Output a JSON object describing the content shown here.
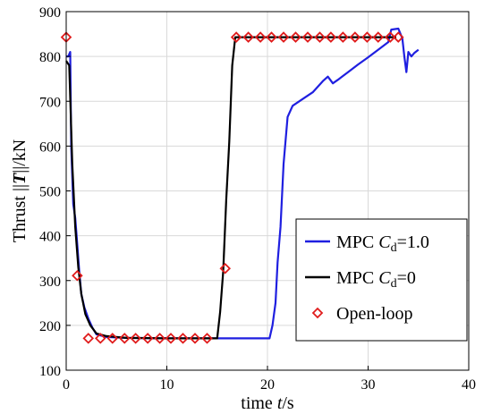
{
  "chart_data": {
    "type": "line",
    "title": "",
    "xlabel": {
      "prefix": "time ",
      "italic": "t",
      "suffix": "/s"
    },
    "ylabel": {
      "prefix": "Thrust ||",
      "italic": "T",
      "suffix": "||/kN"
    },
    "xlim": [
      0,
      40
    ],
    "ylim": [
      100,
      900
    ],
    "xticks": [
      0,
      10,
      20,
      30,
      40
    ],
    "yticks": [
      100,
      200,
      300,
      400,
      500,
      600,
      700,
      800,
      900
    ],
    "grid": true,
    "legend_position": "center-right",
    "series": [
      {
        "name": {
          "prefix": "MPC ",
          "italic": "C",
          "sub": "d",
          "suffix": "=1.0"
        },
        "color": "#1f1fe0",
        "style": "line",
        "points": [
          [
            0.0,
            800
          ],
          [
            0.2,
            800
          ],
          [
            0.4,
            810
          ],
          [
            0.5,
            600
          ],
          [
            0.7,
            470
          ],
          [
            0.9,
            440
          ],
          [
            1.1,
            380
          ],
          [
            1.3,
            320
          ],
          [
            1.5,
            270
          ],
          [
            1.8,
            240
          ],
          [
            2.2,
            215
          ],
          [
            2.6,
            195
          ],
          [
            3.0,
            180
          ],
          [
            4.0,
            174
          ],
          [
            6.0,
            172
          ],
          [
            10.0,
            171
          ],
          [
            14.0,
            171
          ],
          [
            20.2,
            171
          ],
          [
            20.5,
            200
          ],
          [
            20.8,
            250
          ],
          [
            21.0,
            340
          ],
          [
            21.3,
            420
          ],
          [
            21.6,
            560
          ],
          [
            22.0,
            665
          ],
          [
            22.5,
            690
          ],
          [
            23.5,
            705
          ],
          [
            24.5,
            720
          ],
          [
            25.5,
            745
          ],
          [
            26.0,
            755
          ],
          [
            26.5,
            740
          ],
          [
            27.0,
            748
          ],
          [
            28.0,
            765
          ],
          [
            29.0,
            782
          ],
          [
            30.0,
            798
          ],
          [
            31.0,
            815
          ],
          [
            32.0,
            832
          ],
          [
            32.3,
            860
          ],
          [
            33.0,
            862
          ],
          [
            33.4,
            840
          ],
          [
            33.6,
            800
          ],
          [
            33.8,
            765
          ],
          [
            34.0,
            810
          ],
          [
            34.3,
            800
          ],
          [
            34.6,
            808
          ],
          [
            35.0,
            815
          ]
        ]
      },
      {
        "name": {
          "prefix": "MPC ",
          "italic": "C",
          "sub": "d",
          "suffix": "=0"
        },
        "color": "#000000",
        "style": "line",
        "points": [
          [
            0.0,
            790
          ],
          [
            0.3,
            780
          ],
          [
            0.6,
            560
          ],
          [
            0.9,
            420
          ],
          [
            1.2,
            330
          ],
          [
            1.5,
            270
          ],
          [
            1.9,
            225
          ],
          [
            2.4,
            200
          ],
          [
            3.0,
            182
          ],
          [
            4.0,
            176
          ],
          [
            6.0,
            172
          ],
          [
            10.0,
            171
          ],
          [
            15.0,
            171
          ],
          [
            15.3,
            230
          ],
          [
            15.6,
            320
          ],
          [
            15.9,
            480
          ],
          [
            16.2,
            610
          ],
          [
            16.5,
            780
          ],
          [
            16.8,
            843
          ],
          [
            20.0,
            843
          ],
          [
            25.0,
            843
          ],
          [
            30.0,
            843
          ],
          [
            32.8,
            843
          ]
        ]
      },
      {
        "name": {
          "prefix": "Open-loop",
          "italic": "",
          "sub": "",
          "suffix": ""
        },
        "color": "#e01c1c",
        "style": "diamond-markers",
        "points": [
          [
            0.0,
            843
          ],
          [
            1.1,
            311
          ],
          [
            2.2,
            171
          ],
          [
            3.4,
            171
          ],
          [
            4.6,
            171
          ],
          [
            5.8,
            171
          ],
          [
            6.9,
            171
          ],
          [
            8.1,
            171
          ],
          [
            9.3,
            171
          ],
          [
            10.4,
            171
          ],
          [
            11.6,
            171
          ],
          [
            12.8,
            171
          ],
          [
            14.0,
            171
          ],
          [
            15.8,
            327
          ],
          [
            16.9,
            843
          ],
          [
            18.1,
            843
          ],
          [
            19.3,
            843
          ],
          [
            20.4,
            843
          ],
          [
            21.6,
            843
          ],
          [
            22.8,
            843
          ],
          [
            24.0,
            843
          ],
          [
            25.2,
            843
          ],
          [
            26.3,
            843
          ],
          [
            27.5,
            843
          ],
          [
            28.7,
            843
          ],
          [
            29.9,
            843
          ],
          [
            31.0,
            843
          ],
          [
            32.2,
            843
          ],
          [
            33.0,
            843
          ]
        ]
      }
    ]
  }
}
